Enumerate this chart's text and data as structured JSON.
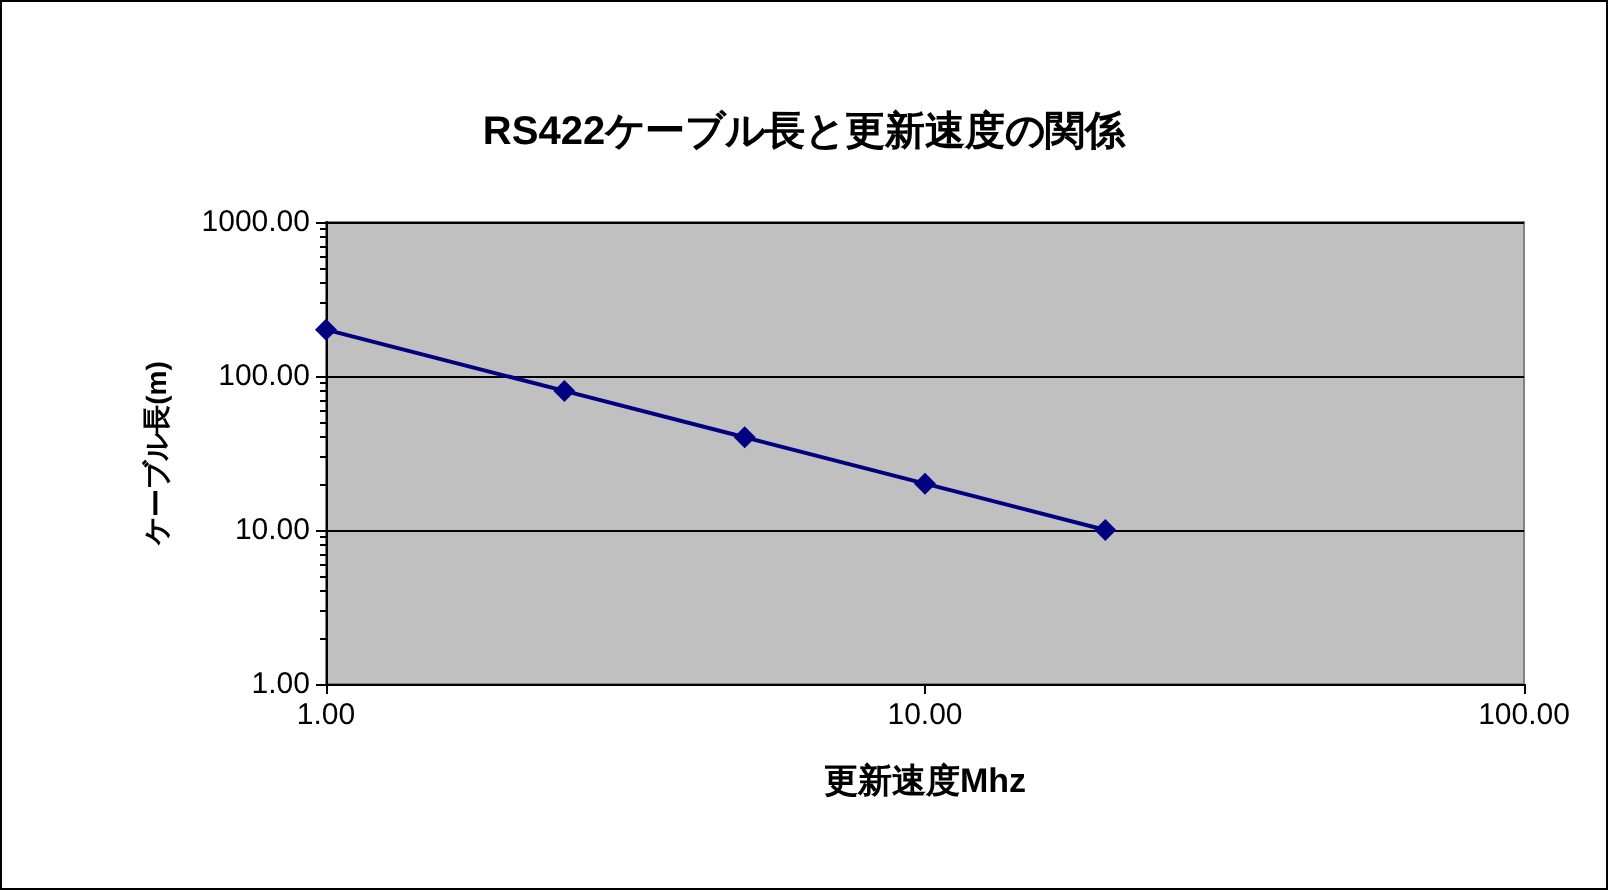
{
  "chart_data": {
    "type": "line",
    "title": "RS422ケーブル長と更新速度の関係",
    "xlabel": "更新速度Mhz",
    "ylabel": "ケーブル長(m)",
    "x": [
      1,
      2.5,
      5,
      10,
      20
    ],
    "series": [
      {
        "color": "#000080",
        "values": [
          200,
          80,
          40,
          20,
          10
        ]
      }
    ],
    "log": "xy",
    "xlim": [
      1,
      100
    ],
    "xticks": [
      {
        "value": 1,
        "label": "1.00"
      },
      {
        "value": 10,
        "label": "10.00"
      },
      {
        "value": 100,
        "label": "100.00"
      }
    ],
    "ylim": [
      1,
      1000
    ],
    "yticks": [
      {
        "value": 1,
        "label": "1.00"
      },
      {
        "value": 10,
        "label": "10.00"
      },
      {
        "value": 100,
        "label": "100.00"
      },
      {
        "value": 1000,
        "label": "1000.00"
      }
    ],
    "grid": "y",
    "marker": "diamond",
    "line_style": "solid"
  }
}
